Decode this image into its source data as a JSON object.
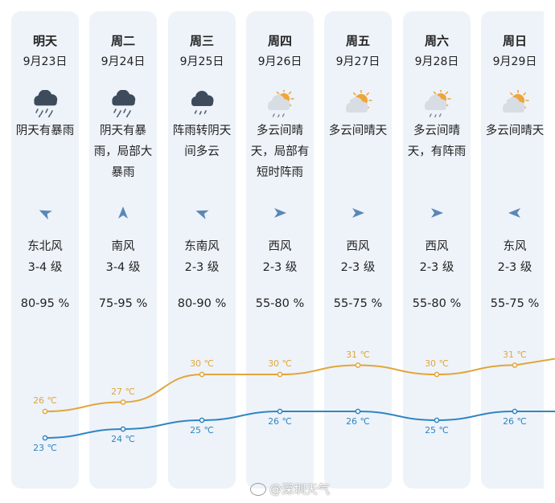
{
  "forecast": {
    "days": [
      {
        "day": "明天",
        "date": "9月23日",
        "icon": "heavy-rain-cloud-icon",
        "weather": [
          "阴天有暴雨"
        ],
        "wind_dir": "东北风",
        "wind_level": "3-4 级",
        "humidity": "80-95 %",
        "high": "26 ℃",
        "low": "23 ℃"
      },
      {
        "day": "周二",
        "date": "9月24日",
        "icon": "heavy-rain-cloud-icon",
        "weather": [
          "阴天有暴",
          "雨，局部大",
          "暴雨"
        ],
        "wind_dir": "南风",
        "wind_level": "3-4 级",
        "humidity": "75-95 %",
        "high": "27 ℃",
        "low": "24 ℃"
      },
      {
        "day": "周三",
        "date": "9月25日",
        "icon": "shower-cloud-icon",
        "weather": [
          "阵雨转阴天",
          "间多云"
        ],
        "wind_dir": "东南风",
        "wind_level": "2-3 级",
        "humidity": "80-90 %",
        "high": "30 ℃",
        "low": "25 ℃"
      },
      {
        "day": "周四",
        "date": "9月26日",
        "icon": "partly-cloudy-shower-icon",
        "weather": [
          "多云间晴",
          "天，局部有",
          "短时阵雨"
        ],
        "wind_dir": "西风",
        "wind_level": "2-3 级",
        "humidity": "55-80 %",
        "high": "30 ℃",
        "low": "26 ℃"
      },
      {
        "day": "周五",
        "date": "9月27日",
        "icon": "partly-cloudy-sun-icon",
        "weather": [
          "多云间晴天"
        ],
        "wind_dir": "西风",
        "wind_level": "2-3 级",
        "humidity": "55-75 %",
        "high": "31 ℃",
        "low": "26 ℃"
      },
      {
        "day": "周六",
        "date": "9月28日",
        "icon": "partly-cloudy-shower-icon",
        "weather": [
          "多云间晴",
          "天，有阵雨"
        ],
        "wind_dir": "西风",
        "wind_level": "2-3 级",
        "humidity": "55-80 %",
        "high": "30 ℃",
        "low": "25 ℃"
      },
      {
        "day": "周日",
        "date": "9月29日",
        "icon": "partly-cloudy-sun-icon",
        "weather": [
          "多云间晴天"
        ],
        "wind_dir": "东风",
        "wind_level": "2-3 级",
        "humidity": "55-75 %",
        "high": "31 ℃",
        "low": "26 ℃"
      }
    ]
  },
  "temps": {
    "high": [
      26,
      27,
      30,
      30,
      31,
      30,
      31
    ],
    "low": [
      23,
      24,
      25,
      26,
      26,
      25,
      26
    ]
  },
  "colors": {
    "high_line": "#e2a63b",
    "low_line": "#2f86c3",
    "column_bg": "#eef3f9",
    "arrow": "#5b86b8"
  },
  "watermark": {
    "text": "@深圳天气"
  }
}
